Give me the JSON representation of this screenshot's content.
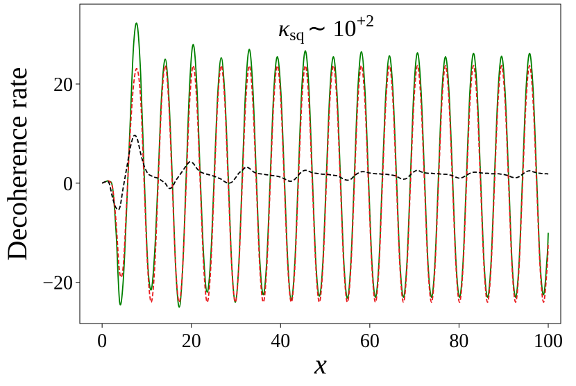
{
  "chart_data": {
    "type": "line",
    "annotation": [
      "κ",
      "sq",
      "∼ 10",
      "+2"
    ],
    "xlabel": "x",
    "ylabel": "Decoherence rate",
    "xlim": [
      -5,
      102.8
    ],
    "ylim": [
      -28.3,
      36.1
    ],
    "xticks": [
      0,
      20,
      40,
      60,
      80,
      100
    ],
    "yticks": [
      {
        "value": -20,
        "label": "−20"
      },
      0,
      20
    ],
    "grid": false,
    "x": [
      0,
      0.79,
      1.57,
      2.36,
      3.14,
      3.93,
      4.71,
      5.5,
      6.28,
      7.07,
      7.85,
      8.64,
      9.42,
      10.21,
      11.0,
      11.78,
      12.57,
      13.35,
      14.14,
      14.92,
      15.71,
      16.49,
      17.28,
      18.06,
      18.85,
      19.63,
      20.42,
      21.21,
      21.99,
      22.78,
      23.56,
      24.35,
      25.13,
      25.92,
      26.7,
      27.49,
      28.27,
      29.06,
      29.85,
      30.63,
      31.42,
      32.2,
      32.99,
      33.77,
      34.56,
      35.34,
      36.13,
      36.91,
      37.7,
      38.48,
      39.27,
      40.06,
      40.84,
      41.63,
      42.41,
      43.2,
      43.98,
      44.77,
      45.55,
      46.34,
      47.12,
      47.91,
      48.69,
      49.48,
      50.27,
      51.05,
      51.84,
      52.62,
      53.41,
      54.19,
      54.98,
      55.76,
      56.55,
      57.33,
      58.12,
      58.9,
      59.69,
      60.48,
      61.26,
      62.05,
      62.83,
      63.62,
      64.4,
      65.19,
      65.97,
      66.76,
      67.54,
      68.33,
      69.12,
      69.9,
      70.69,
      71.47,
      72.26,
      73.04,
      73.83,
      74.61,
      75.4,
      76.18,
      76.97,
      77.75,
      78.54,
      79.33,
      80.11,
      80.9,
      81.68,
      82.47,
      83.25,
      84.04,
      84.82,
      85.61,
      86.39,
      87.18,
      87.96,
      88.75,
      89.54,
      90.32,
      91.11,
      91.89,
      92.68,
      93.46,
      94.25,
      95.03,
      95.82,
      96.6,
      97.39,
      98.17,
      98.96,
      99.75,
      100
    ],
    "series": [
      {
        "name": "green",
        "color": "#008000",
        "linestyle": "solid",
        "values": [
          0,
          0.3,
          0.4,
          -1,
          -10,
          -24,
          -20,
          -5,
          12,
          28,
          32,
          22,
          2,
          -16,
          -21.5,
          -14,
          1.5,
          18,
          25,
          18,
          1.5,
          -17,
          -25,
          -17,
          1.5,
          20,
          28,
          20,
          1.5,
          -15,
          -22,
          -15,
          1.5,
          18,
          25.3,
          18,
          1.5,
          -16.5,
          -24,
          -16.5,
          1.5,
          19.5,
          27,
          19.5,
          1.5,
          -15.5,
          -22.5,
          -15.5,
          1.5,
          18.5,
          25.5,
          18.5,
          1.5,
          -16,
          -23.5,
          -16,
          1.5,
          19.3,
          26.7,
          19.3,
          1.5,
          -16,
          -22.8,
          -16,
          1.5,
          18.5,
          25.5,
          18.5,
          1.5,
          -16,
          -23.2,
          -16,
          1.5,
          19,
          26.5,
          19,
          1.5,
          -16,
          -23,
          -16,
          1.5,
          18.5,
          25.7,
          18.5,
          1.5,
          -16,
          -23,
          -16,
          1.5,
          19,
          26.3,
          19,
          1.5,
          -16,
          -23,
          -16,
          1.5,
          18.5,
          25.5,
          18.5,
          1.5,
          -16,
          -23,
          -16,
          1.5,
          19,
          26.2,
          19,
          1.5,
          -16,
          -23,
          -16,
          1.5,
          18.5,
          25.6,
          18.5,
          1.5,
          -16,
          -23,
          -16,
          1.5,
          19,
          26.2,
          19,
          1.5,
          -16,
          -22.5,
          -15,
          -10
        ]
      },
      {
        "name": "red",
        "color": "#e8191c",
        "linestyle": "dashed",
        "values": [
          0,
          0.3,
          0.4,
          -1,
          -8,
          -18,
          -17,
          -4,
          10,
          20,
          23,
          17,
          0,
          -17,
          -24,
          -17,
          0,
          16.6,
          23.7,
          16.6,
          0,
          -17,
          -24,
          -17,
          0,
          16.6,
          23.7,
          16.6,
          0,
          -17,
          -24,
          -17,
          0,
          16.6,
          23.7,
          16.6,
          0,
          -17,
          -24,
          -17,
          0,
          16.6,
          23.7,
          16.6,
          0,
          -17,
          -24,
          -17,
          0,
          16.6,
          23.7,
          16.6,
          0,
          -17,
          -24,
          -17,
          0,
          16.6,
          23.7,
          16.6,
          0,
          -17,
          -24,
          -17,
          0,
          16.6,
          23.7,
          16.6,
          0,
          -17,
          -24,
          -17,
          0,
          16.6,
          23.7,
          16.6,
          0,
          -17,
          -24,
          -17,
          0,
          16.6,
          23.7,
          16.6,
          0,
          -17,
          -24,
          -17,
          0,
          16.6,
          23.7,
          16.6,
          0,
          -17,
          -24,
          -17,
          0,
          16.6,
          23.7,
          16.6,
          0,
          -17,
          -24,
          -17,
          0,
          16.6,
          23.7,
          16.6,
          0,
          -17,
          -24,
          -17,
          0,
          16.6,
          23.7,
          16.6,
          0,
          -17,
          -24,
          -17,
          0,
          16.6,
          23.7,
          16.6,
          0,
          -17,
          -24,
          -17,
          -12
        ]
      },
      {
        "name": "black",
        "color": "#000000",
        "linestyle": "dashed",
        "values": [
          0,
          0.3,
          0,
          -3,
          -5,
          -5,
          -1,
          3,
          7,
          9.5,
          9,
          6,
          3.5,
          2,
          1.5,
          1.2,
          1,
          0.5,
          0,
          -1,
          -0.8,
          0.5,
          1.5,
          2.5,
          3.5,
          4.3,
          4,
          3,
          2.3,
          2,
          1.8,
          1.6,
          1.4,
          1.1,
          0.8,
          0.3,
          0,
          0.2,
          1,
          2,
          2.6,
          3.2,
          3,
          2.4,
          2,
          1.9,
          1.8,
          1.7,
          1.6,
          1.5,
          1.4,
          1.2,
          0.9,
          0.5,
          0.4,
          0.8,
          1.6,
          2.3,
          2.6,
          2.4,
          2.1,
          2,
          1.9,
          1.8,
          1.8,
          1.7,
          1.6,
          1.5,
          1.2,
          0.8,
          0.6,
          0.8,
          1.5,
          2,
          2.3,
          2.3,
          2.1,
          2,
          1.9,
          1.9,
          1.8,
          1.8,
          1.7,
          1.6,
          1.4,
          1,
          0.8,
          1,
          1.7,
          2.3,
          2.6,
          2.3,
          2.1,
          2,
          2,
          1.9,
          1.9,
          1.8,
          1.8,
          1.7,
          1.5,
          1.2,
          1,
          1.2,
          1.6,
          2,
          2.2,
          2.2,
          2.1,
          2,
          2,
          1.9,
          1.9,
          1.9,
          1.8,
          1.7,
          1.5,
          1.2,
          1.1,
          1.3,
          1.8,
          2.3,
          2.5,
          2.3,
          2.1,
          2,
          1.9,
          1.9,
          1.8
        ]
      }
    ]
  }
}
